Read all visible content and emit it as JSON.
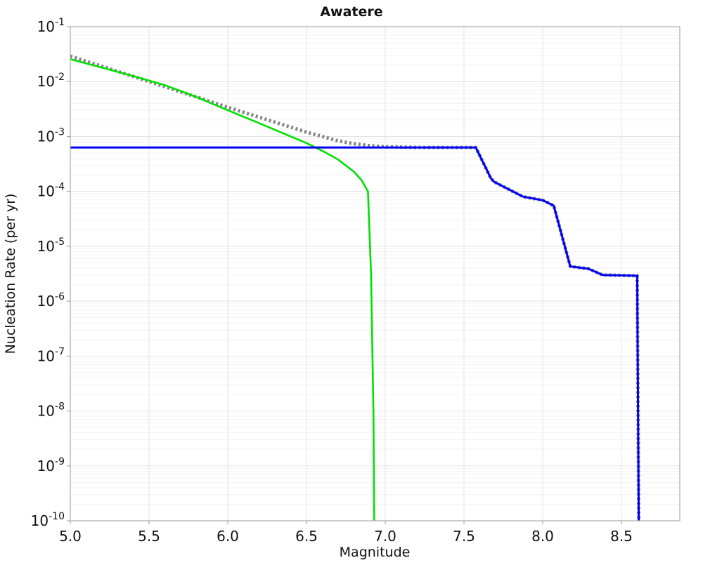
{
  "chart": {
    "title": "Awatere",
    "xlabel": "Magnitude",
    "ylabel": "Nucleation Rate (per yr)"
  },
  "chart_data": {
    "type": "line",
    "title": "Awatere",
    "xlabel": "Magnitude",
    "ylabel": "Nucleation Rate (per yr)",
    "xlim": [
      5.0,
      8.871
    ],
    "ylim": [
      1e-10,
      0.1
    ],
    "x_ticks": [
      5.0,
      5.5,
      6.0,
      6.5,
      7.0,
      7.5,
      8.0,
      8.5
    ],
    "x_tick_labels": [
      "5.0",
      "5.5",
      "6.0",
      "6.5",
      "7.0",
      "7.5",
      "8.0",
      "8.5"
    ],
    "y_tick_base": "10",
    "y_tick_exponents": [
      "-1",
      "-2",
      "-3",
      "-4",
      "-5",
      "-6",
      "-7",
      "-8",
      "-9",
      "-10"
    ],
    "grid": "log minor + major, light gray, on",
    "legend_position": "none",
    "background": "#ffffff",
    "frame_color": "#aaaaaa",
    "major_grid_color": "#e3e3e3",
    "minor_grid_color": "#f3f3f3",
    "series": [
      {
        "id": "gray-dotted",
        "style": "dotted",
        "color": "#828282",
        "width": 5,
        "points": [
          [
            5.0,
            0.029
          ],
          [
            5.2,
            0.019
          ],
          [
            5.4,
            0.0124
          ],
          [
            5.6,
            0.0081
          ],
          [
            5.8,
            0.00525
          ],
          [
            6.0,
            0.0034
          ],
          [
            6.2,
            0.00224
          ],
          [
            6.4,
            0.00148
          ],
          [
            6.5,
            0.0012
          ],
          [
            6.6,
            0.001
          ],
          [
            6.7,
            0.00083
          ],
          [
            6.8,
            0.00074
          ],
          [
            6.9,
            0.00068
          ],
          [
            7.0,
            0.00065
          ],
          [
            7.2,
            0.00063
          ],
          [
            7.575,
            0.00063
          ],
          [
            7.67,
            0.000175
          ],
          [
            7.69,
            0.00015
          ],
          [
            7.875,
            8e-05
          ],
          [
            8.0,
            6.9e-05
          ],
          [
            8.07,
            5.5e-05
          ],
          [
            8.175,
            4.3e-06
          ],
          [
            8.29,
            3.9e-06
          ],
          [
            8.38,
            3e-06
          ],
          [
            8.6,
            2.9e-06
          ],
          [
            8.61,
            1e-10
          ]
        ]
      },
      {
        "id": "green-solid",
        "style": "solid",
        "color": "#00e100",
        "width": 2.6,
        "points": [
          [
            5.0,
            0.0257
          ],
          [
            5.2,
            0.018
          ],
          [
            5.4,
            0.0126
          ],
          [
            5.6,
            0.0086
          ],
          [
            5.8,
            0.00525
          ],
          [
            6.0,
            0.003
          ],
          [
            6.2,
            0.00174
          ],
          [
            6.4,
            0.001
          ],
          [
            6.5,
            0.00076
          ],
          [
            6.6,
            0.00055
          ],
          [
            6.7,
            0.00038
          ],
          [
            6.8,
            0.00023
          ],
          [
            6.85,
            0.00016
          ],
          [
            6.89,
            0.0001
          ],
          [
            6.91,
            3.2e-06
          ],
          [
            6.925,
            1e-08
          ],
          [
            6.93,
            1e-10
          ]
        ]
      },
      {
        "id": "blue-solid",
        "style": "solid",
        "color": "#0000f5",
        "width": 3,
        "points": [
          [
            5.0,
            0.00063
          ],
          [
            7.575,
            0.00063
          ],
          [
            7.67,
            0.000175
          ],
          [
            7.69,
            0.00015
          ],
          [
            7.875,
            8e-05
          ],
          [
            8.0,
            6.9e-05
          ],
          [
            8.07,
            5.5e-05
          ],
          [
            8.175,
            4.3e-06
          ],
          [
            8.29,
            3.9e-06
          ],
          [
            8.38,
            3e-06
          ],
          [
            8.6,
            2.9e-06
          ],
          [
            8.61,
            1e-10
          ]
        ]
      }
    ]
  }
}
